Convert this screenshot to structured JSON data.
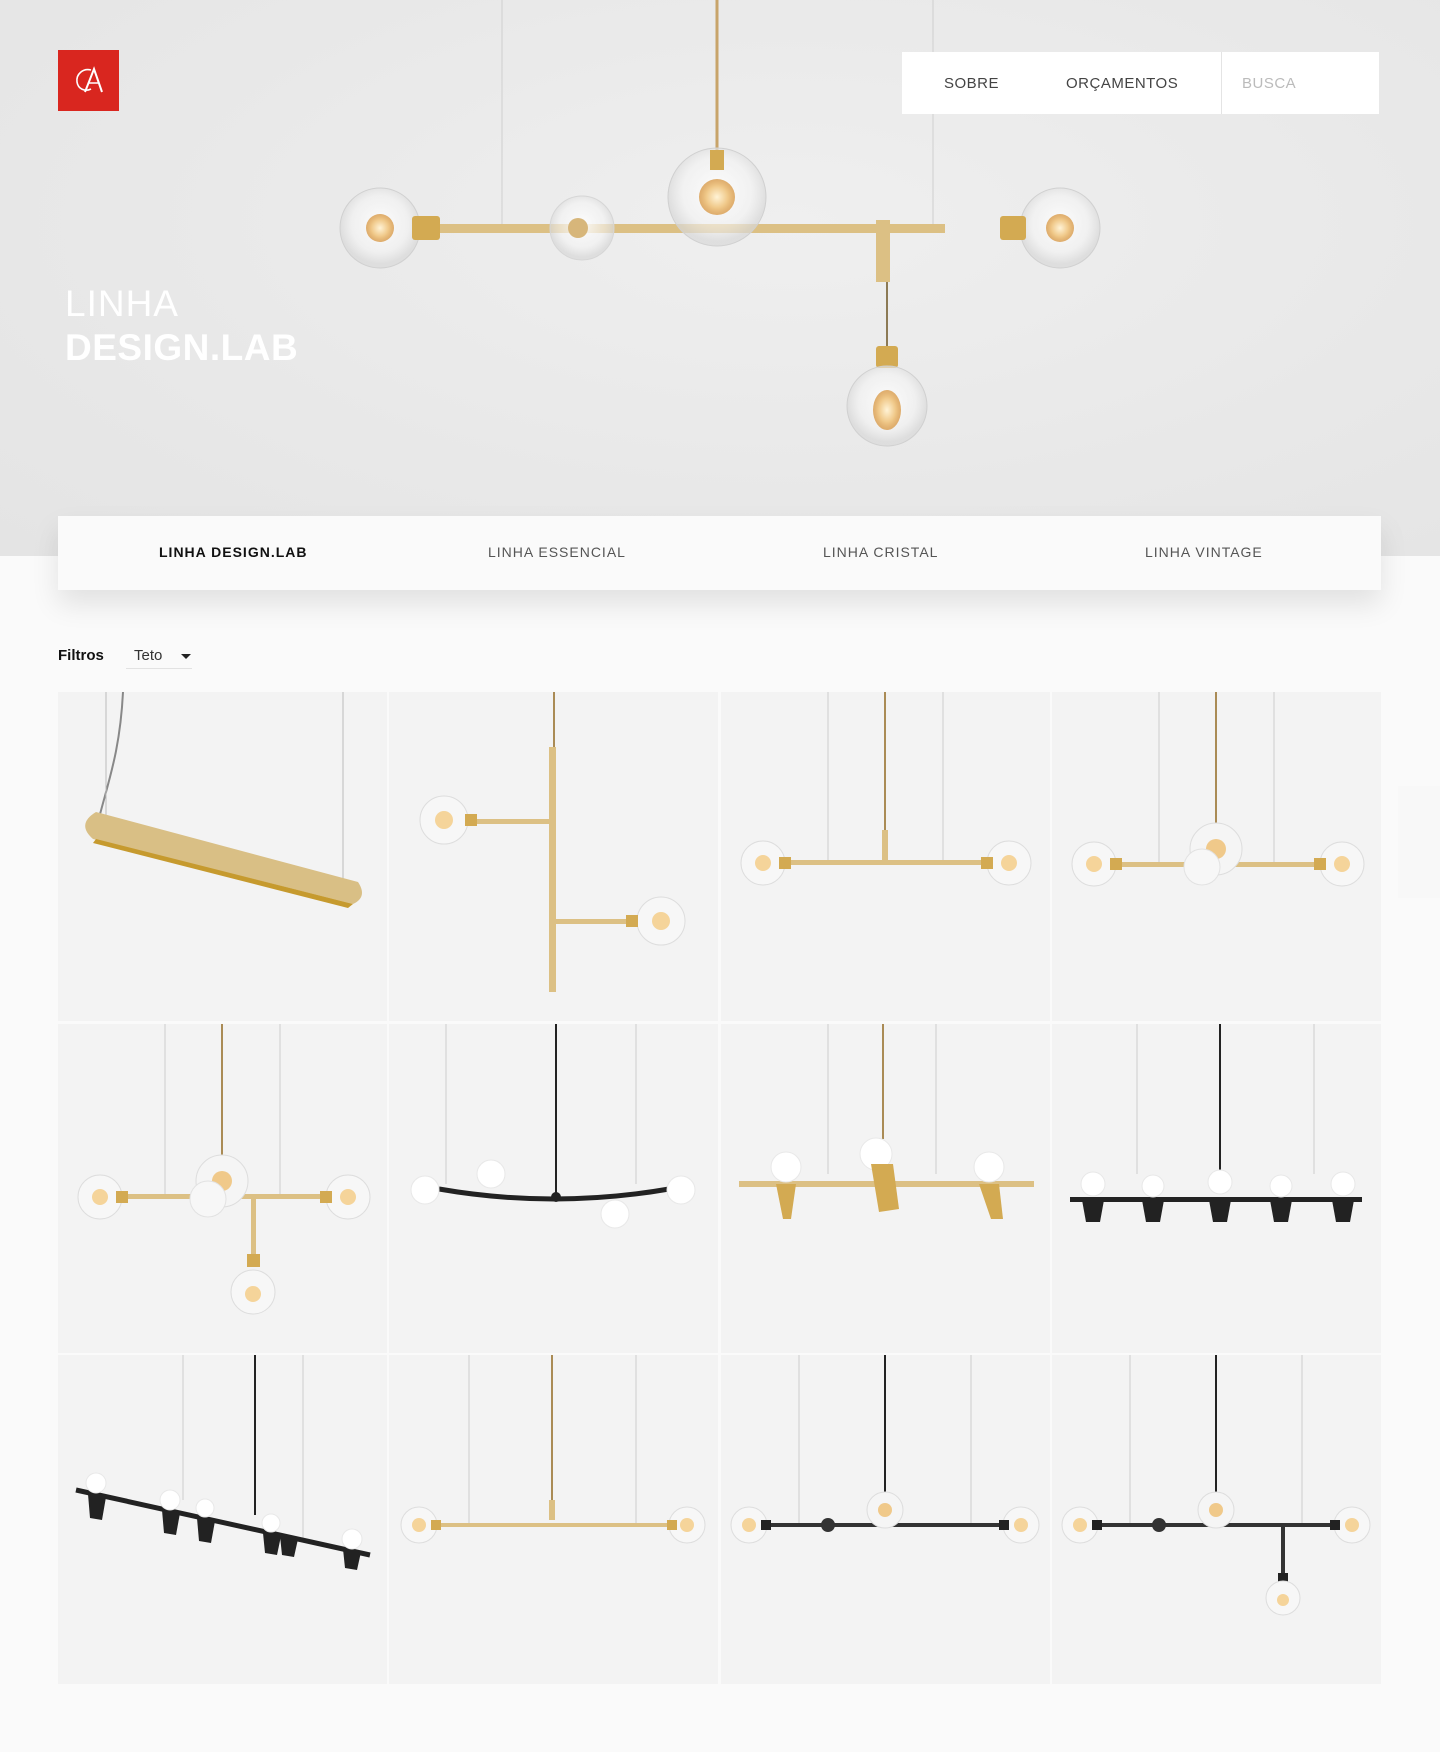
{
  "brand": {
    "logo_color": "#d9261f",
    "logo_icon": "ca-monogram-icon"
  },
  "nav": {
    "links": [
      "SOBRE",
      "ORÇAMENTOS"
    ],
    "search_placeholder": "BUSCA"
  },
  "hero": {
    "title_line1": "LINHA",
    "title_line2": "DESIGN.LAB"
  },
  "tabs": [
    {
      "label": "LINHA DESIGN.LAB",
      "active": true
    },
    {
      "label": "LINHA ESSENCIAL",
      "active": false
    },
    {
      "label": "LINHA CRISTAL",
      "active": false
    },
    {
      "label": "LINHA VINTAGE",
      "active": false
    }
  ],
  "filters": {
    "label": "Filtros",
    "selected": "Teto"
  },
  "products": [
    {
      "style": "gold-bar-linear"
    },
    {
      "style": "gold-vertical-two-globes"
    },
    {
      "style": "gold-t-two-globes"
    },
    {
      "style": "gold-three-globes"
    },
    {
      "style": "gold-cross-four-globes"
    },
    {
      "style": "black-arc-opal-globes"
    },
    {
      "style": "gold-cone-opal-globes"
    },
    {
      "style": "black-five-cones"
    },
    {
      "style": "black-diagonal-cones"
    },
    {
      "style": "gold-t-bar-two-globes"
    },
    {
      "style": "black-three-globes"
    },
    {
      "style": "black-cross-four-globes"
    }
  ],
  "colors": {
    "gold": "#d8bb7a",
    "black": "#222222",
    "hero_bg": "#e9e9e9",
    "card_bg": "#f3f3f3"
  }
}
